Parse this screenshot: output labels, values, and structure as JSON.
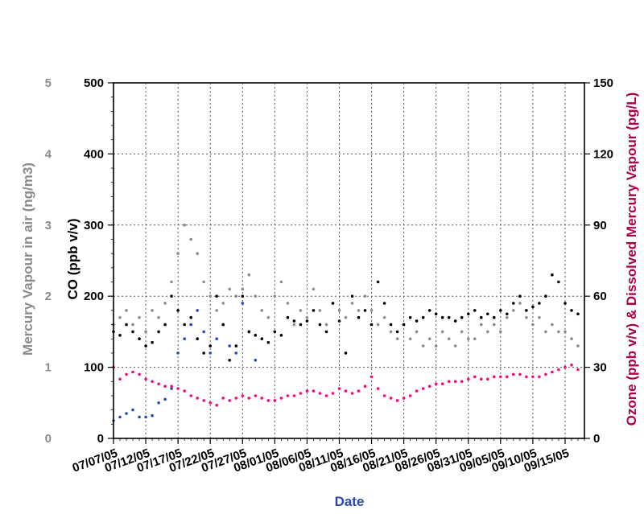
{
  "chart_data": {
    "type": "scatter",
    "xlabel": "Date",
    "x_ticks": [
      "07/07/05",
      "07/12/05",
      "07/17/05",
      "07/22/05",
      "07/27/05",
      "08/01/05",
      "08/06/05",
      "08/11/05",
      "08/16/05",
      "08/21/05",
      "08/26/05",
      "08/31/05",
      "09/05/05",
      "09/10/05",
      "09/15/05"
    ],
    "x_range": [
      "07/07/05",
      "09/18/05"
    ],
    "grid": true,
    "axes": {
      "left_outer": {
        "label": "Mercury Vapour in air (ng/m3)",
        "ticks": [
          "0",
          "1",
          "2",
          "3",
          "4",
          "5"
        ],
        "range": [
          0,
          5
        ],
        "color": "#8c8c8c"
      },
      "left_inner": {
        "label": "CO (ppb v/v)",
        "ticks": [
          "0",
          "100",
          "200",
          "300",
          "400",
          "500"
        ],
        "range": [
          0,
          500
        ],
        "color": "#000000"
      },
      "right": {
        "label": "Ozone (ppb v/v) & Dissolved Mercury Vapour (pg/L)",
        "ticks": [
          "0",
          "30",
          "60",
          "90",
          "120",
          "150"
        ],
        "range": [
          0,
          150
        ],
        "color": "#b0004a"
      }
    },
    "series": [
      {
        "axis": "left_outer",
        "color": "#8c8c8c",
        "day": [
          0,
          1,
          2,
          3,
          4,
          5,
          6,
          7,
          8,
          9,
          10,
          11,
          12,
          13,
          14,
          15,
          16,
          17,
          18,
          19,
          20,
          21,
          22,
          23,
          24,
          25,
          26,
          27,
          28,
          29,
          30,
          31,
          32,
          33,
          34,
          35,
          36,
          37,
          38,
          39,
          40,
          41,
          42,
          43,
          44,
          45,
          46,
          47,
          48,
          49,
          50,
          51,
          52,
          53,
          54,
          55,
          56,
          57,
          58,
          59,
          60,
          61,
          62,
          63,
          64,
          65,
          66,
          67,
          68,
          69,
          70,
          71,
          72
        ],
        "values": [
          1.6,
          1.7,
          1.8,
          1.6,
          1.7,
          1.5,
          1.8,
          1.7,
          1.9,
          2.2,
          2.6,
          3.0,
          2.8,
          2.6,
          2.2,
          2.0,
          1.8,
          1.9,
          2.1,
          2.0,
          2.1,
          2.3,
          2.0,
          1.8,
          1.7,
          2.0,
          2.2,
          1.9,
          1.6,
          1.8,
          1.7,
          2.1,
          1.8,
          1.6,
          1.9,
          1.8,
          1.7,
          1.9,
          1.8,
          2.0,
          1.8,
          1.6,
          1.7,
          1.5,
          1.4,
          1.6,
          1.4,
          1.5,
          1.3,
          1.4,
          1.3,
          1.5,
          1.4,
          1.3,
          1.5,
          1.4,
          1.4,
          1.6,
          1.5,
          1.6,
          1.5,
          1.7,
          1.8,
          1.9,
          1.7,
          1.6,
          1.7,
          1.5,
          1.6,
          1.5,
          1.5,
          1.4,
          1.3
        ]
      },
      {
        "axis": "left_outer",
        "color": "#2a4aa8",
        "day": [
          0,
          1,
          2,
          3,
          4,
          5,
          6,
          7,
          8,
          9,
          10,
          11,
          12,
          13,
          14,
          15,
          16,
          17,
          18,
          19,
          20,
          21,
          22
        ],
        "values": [
          0.25,
          0.3,
          0.35,
          0.4,
          0.3,
          0.3,
          0.32,
          0.5,
          0.55,
          0.7,
          1.2,
          1.4,
          1.6,
          1.8,
          1.5,
          1.2,
          1.4,
          1.6,
          1.3,
          1.2,
          1.9,
          1.5,
          1.1
        ]
      },
      {
        "axis": "left_inner",
        "color": "#000000",
        "day": [
          0,
          1,
          2,
          3,
          4,
          5,
          6,
          7,
          8,
          9,
          10,
          11,
          12,
          13,
          14,
          15,
          16,
          17,
          18,
          19,
          20,
          21,
          22,
          23,
          24,
          25,
          26,
          27,
          28,
          29,
          30,
          31,
          32,
          33,
          34,
          35,
          36,
          37,
          38,
          39,
          40,
          41,
          42,
          43,
          44,
          45,
          46,
          47,
          48,
          49,
          50,
          51,
          52,
          53,
          54,
          55,
          56,
          57,
          58,
          59,
          60,
          61,
          62,
          63,
          64,
          65,
          66,
          67,
          68,
          69,
          70,
          71,
          72
        ],
        "values": [
          150,
          145,
          160,
          150,
          140,
          130,
          135,
          150,
          160,
          200,
          180,
          160,
          170,
          140,
          120,
          130,
          200,
          160,
          110,
          130,
          200,
          150,
          145,
          140,
          135,
          150,
          145,
          170,
          165,
          160,
          165,
          180,
          160,
          150,
          190,
          165,
          120,
          200,
          170,
          180,
          160,
          220,
          190,
          160,
          150,
          160,
          170,
          165,
          170,
          180,
          175,
          170,
          170,
          165,
          170,
          175,
          180,
          170,
          175,
          170,
          180,
          175,
          190,
          200,
          180,
          185,
          190,
          200,
          230,
          220,
          190,
          180,
          175
        ]
      },
      {
        "axis": "right",
        "color": "#e0147a",
        "day": [
          0,
          1,
          2,
          3,
          4,
          5,
          6,
          7,
          8,
          9,
          10,
          11,
          12,
          13,
          14,
          15,
          16,
          17,
          18,
          19,
          20,
          21,
          22,
          23,
          24,
          25,
          26,
          27,
          28,
          29,
          30,
          31,
          32,
          33,
          34,
          35,
          36,
          37,
          38,
          39,
          40,
          41,
          42,
          43,
          44,
          45,
          46,
          47,
          48,
          49,
          50,
          51,
          52,
          53,
          54,
          55,
          56,
          57,
          58,
          59,
          60,
          61,
          62,
          63,
          64,
          65,
          66,
          67,
          68,
          69,
          70,
          71,
          72
        ],
        "values": [
          30,
          25,
          27,
          28,
          27,
          25,
          24,
          23,
          22,
          22,
          21,
          20,
          18,
          17,
          16,
          15,
          14,
          17,
          16,
          17,
          18,
          17,
          18,
          17,
          16,
          16,
          17,
          18,
          18,
          19,
          20,
          20,
          19,
          18,
          19,
          21,
          20,
          19,
          20,
          22,
          26,
          21,
          18,
          17,
          16,
          17,
          18,
          20,
          21,
          22,
          23,
          23,
          24,
          24,
          24,
          25,
          26,
          25,
          25,
          26,
          26,
          26,
          27,
          27,
          26,
          26,
          26,
          27,
          28,
          29,
          30,
          31,
          29
        ]
      }
    ]
  }
}
